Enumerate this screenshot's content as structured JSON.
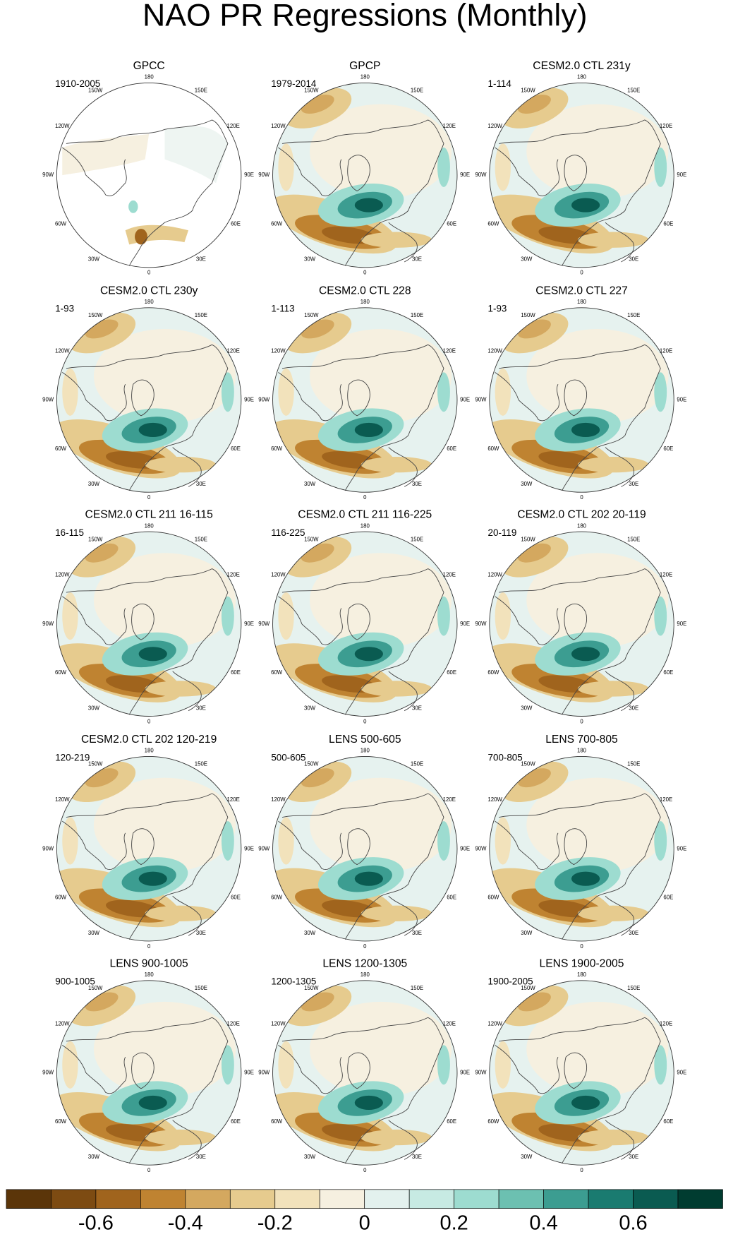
{
  "title": "NAO PR Regressions (Monthly)",
  "panels": [
    {
      "title": "GPCC",
      "period": "1910-2005"
    },
    {
      "title": "GPCP",
      "period": "1979-2014"
    },
    {
      "title": "CESM2.0 CTL 231y",
      "period": "1-114"
    },
    {
      "title": "CESM2.0 CTL 230y",
      "period": "1-93"
    },
    {
      "title": "CESM2.0 CTL 228",
      "period": "1-113"
    },
    {
      "title": "CESM2.0 CTL 227",
      "period": "1-93"
    },
    {
      "title": "CESM2.0 CTL 211 16-115",
      "period": "16-115"
    },
    {
      "title": "CESM2.0 CTL 211 116-225",
      "period": "116-225"
    },
    {
      "title": "CESM2.0 CTL 202 20-119",
      "period": "20-119"
    },
    {
      "title": "CESM2.0 CTL 202 120-219",
      "period": "120-219"
    },
    {
      "title": "LENS 500-605",
      "period": "500-605"
    },
    {
      "title": "LENS 700-805",
      "period": "700-805"
    },
    {
      "title": "LENS 900-1005",
      "period": "900-1005"
    },
    {
      "title": "LENS 1200-1305",
      "period": "1200-1305"
    },
    {
      "title": "LENS 1900-2005",
      "period": "1900-2005"
    }
  ],
  "longitude_labels": [
    "180",
    "150E",
    "120E",
    "90E",
    "60E",
    "30E",
    "0",
    "30W",
    "60W",
    "90W",
    "120W",
    "150W"
  ],
  "colorbar": {
    "clim": [
      -0.8,
      0.8
    ],
    "colors": [
      "#5b3509",
      "#7d4b12",
      "#a0641d",
      "#bf8331",
      "#d4a85f",
      "#e6cb8e",
      "#f2e2bb",
      "#f6f0e0",
      "#e3f1ee",
      "#c7eae3",
      "#9ddcd0",
      "#6cc0b1",
      "#3c9d91",
      "#1a7b70",
      "#0a5b51",
      "#003c30"
    ],
    "ticks": [
      -0.6,
      -0.4,
      -0.2,
      0,
      0.2,
      0.4,
      0.6
    ]
  }
}
